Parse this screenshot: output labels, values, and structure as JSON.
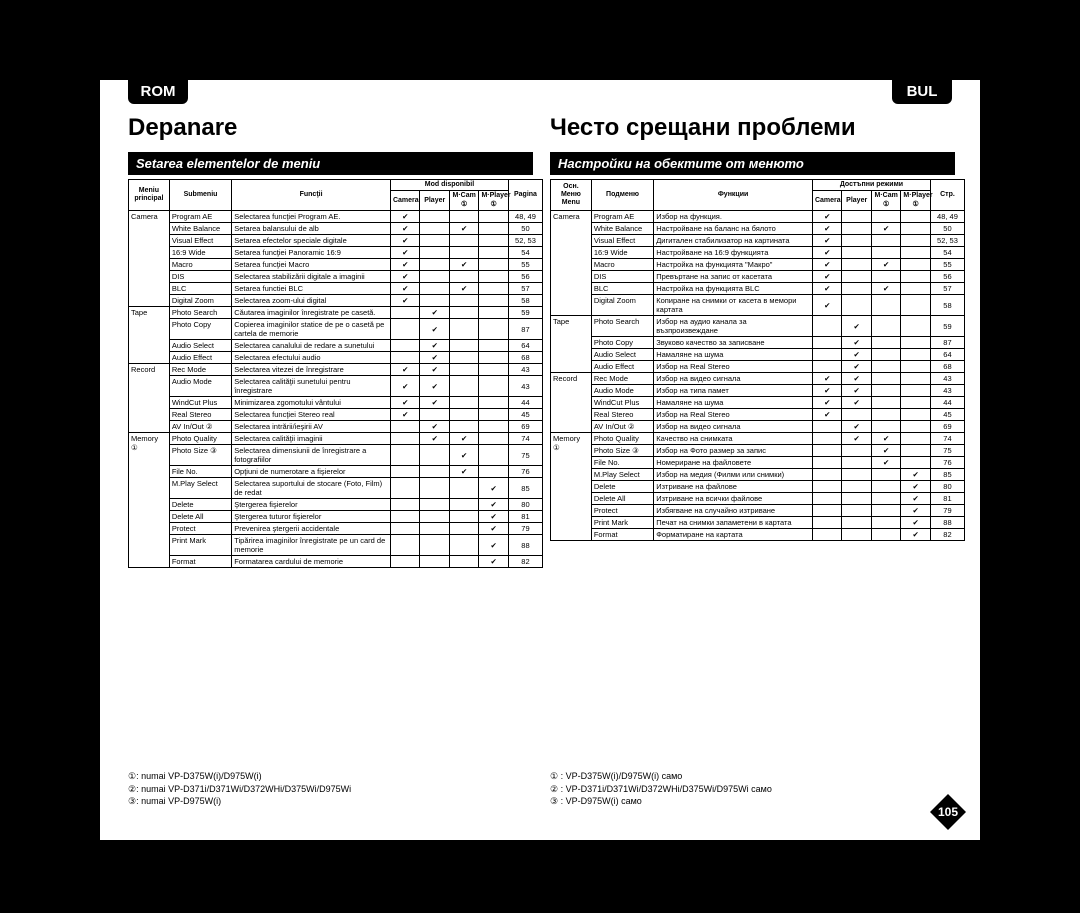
{
  "lang": {
    "left": "ROM",
    "right": "BUL"
  },
  "titles": {
    "left": "Depanare",
    "right": "Често срещани проблеми"
  },
  "sections": {
    "left": "Setarea elementelor de meniu",
    "right": "Настройки на обектите от менюто"
  },
  "colors": {
    "bg": "#000000",
    "paper": "#ffffff",
    "header": "#000000",
    "text": "#000000"
  },
  "page_number": "105",
  "headers_left": {
    "main": "Meniu principal",
    "sub": "Submeniu",
    "func": "Funcţii",
    "mode_group": "Mod disponibil",
    "modes": [
      "Camera",
      "Player",
      "M·Cam ①",
      "M·Player ①"
    ],
    "page": "Pagina"
  },
  "headers_right": {
    "main": "Осн. Меню Menu",
    "sub": "Подменю",
    "func": "Функции",
    "mode_group": "Достъпни режими",
    "modes": [
      "Camera",
      "Player",
      "M·Cam ①",
      "M·Player ①"
    ],
    "page": "Стр."
  },
  "check": "✔",
  "rows_left": [
    {
      "main": "Camera",
      "sub": "Program AE",
      "func": "Selectarea funcţiei Program AE.",
      "m": [
        1,
        0,
        0,
        0
      ],
      "p": "48, 49"
    },
    {
      "main": "",
      "sub": "White Balance",
      "func": "Setarea balansului de alb",
      "m": [
        1,
        0,
        1,
        0
      ],
      "p": "50"
    },
    {
      "main": "",
      "sub": "Visual Effect",
      "func": "Setarea efectelor speciale digitale",
      "m": [
        1,
        0,
        0,
        0
      ],
      "p": "52, 53"
    },
    {
      "main": "",
      "sub": "16:9 Wide",
      "func": "Setarea funcţiei Panoramic 16:9",
      "m": [
        1,
        0,
        0,
        0
      ],
      "p": "54"
    },
    {
      "main": "",
      "sub": "Macro",
      "func": "Setarea funcţiei Macro",
      "m": [
        1,
        0,
        1,
        0
      ],
      "p": "55"
    },
    {
      "main": "",
      "sub": "DIS",
      "func": "Selectarea stabilizării digitale a imaginii",
      "m": [
        1,
        0,
        0,
        0
      ],
      "p": "56"
    },
    {
      "main": "",
      "sub": "BLC",
      "func": "Setarea functiei BLC",
      "m": [
        1,
        0,
        1,
        0
      ],
      "p": "57"
    },
    {
      "main": "",
      "sub": "Digital Zoom",
      "func": "Selectarea zoom-ului digital",
      "m": [
        1,
        0,
        0,
        0
      ],
      "p": "58"
    },
    {
      "main": "Tape",
      "sub": "Photo Search",
      "func": "Căutarea imaginilor înregistrate pe casetă.",
      "m": [
        0,
        1,
        0,
        0
      ],
      "p": "59"
    },
    {
      "main": "",
      "sub": "Photo Copy",
      "func": "Copierea imaginilor statice de pe o casetă pe cartela de memorie",
      "m": [
        0,
        1,
        0,
        0
      ],
      "p": "87"
    },
    {
      "main": "",
      "sub": "Audio Select",
      "func": "Selectarea canalului de redare a sunetului",
      "m": [
        0,
        1,
        0,
        0
      ],
      "p": "64"
    },
    {
      "main": "",
      "sub": "Audio Effect",
      "func": "Selectarea efectului audio",
      "m": [
        0,
        1,
        0,
        0
      ],
      "p": "68"
    },
    {
      "main": "Record",
      "sub": "Rec Mode",
      "func": "Selectarea vitezei de înregistrare",
      "m": [
        1,
        1,
        0,
        0
      ],
      "p": "43"
    },
    {
      "main": "",
      "sub": "Audio Mode",
      "func": "Selectarea calităţii sunetului pentru înregistrare",
      "m": [
        1,
        1,
        0,
        0
      ],
      "p": "43"
    },
    {
      "main": "",
      "sub": "WindCut Plus",
      "func": "Minimizarea zgomotului vântului",
      "m": [
        1,
        1,
        0,
        0
      ],
      "p": "44"
    },
    {
      "main": "",
      "sub": "Real Stereo",
      "func": "Selectarea funcţiei Stereo real",
      "m": [
        1,
        0,
        0,
        0
      ],
      "p": "45"
    },
    {
      "main": "",
      "sub": "AV In/Out ②",
      "func": "Selectarea intrării/ieşirii AV",
      "m": [
        0,
        1,
        0,
        0
      ],
      "p": "69"
    },
    {
      "main": "Memory ①",
      "sub": "Photo Quality",
      "func": "Selectarea calităţii imaginii",
      "m": [
        0,
        1,
        1,
        0
      ],
      "p": "74"
    },
    {
      "main": "",
      "sub": "Photo Size ③",
      "func": "Selectarea dimensiunii de înregistrare a fotografiilor",
      "m": [
        0,
        0,
        1,
        0
      ],
      "p": "75"
    },
    {
      "main": "",
      "sub": "File No.",
      "func": "Opţiuni de numerotare a fişierelor",
      "m": [
        0,
        0,
        1,
        0
      ],
      "p": "76"
    },
    {
      "main": "",
      "sub": "M.Play Select",
      "func": "Selectarea suportului de stocare (Foto, Film) de redat",
      "m": [
        0,
        0,
        0,
        1
      ],
      "p": "85"
    },
    {
      "main": "",
      "sub": "Delete",
      "func": "Ştergerea fişierelor",
      "m": [
        0,
        0,
        0,
        1
      ],
      "p": "80"
    },
    {
      "main": "",
      "sub": "Delete All",
      "func": "Ştergerea tuturor fişierelor",
      "m": [
        0,
        0,
        0,
        1
      ],
      "p": "81"
    },
    {
      "main": "",
      "sub": "Protect",
      "func": "Prevenirea ştergerii accidentale",
      "m": [
        0,
        0,
        0,
        1
      ],
      "p": "79"
    },
    {
      "main": "",
      "sub": "Print Mark",
      "func": "Tipărirea imaginilor înregistrate pe un card de memorie",
      "m": [
        0,
        0,
        0,
        1
      ],
      "p": "88"
    },
    {
      "main": "",
      "sub": "Format",
      "func": "Formatarea cardului de memorie",
      "m": [
        0,
        0,
        0,
        1
      ],
      "p": "82"
    }
  ],
  "rows_right": [
    {
      "main": "Camera",
      "sub": "Program AE",
      "func": "Избор на функция.",
      "m": [
        1,
        0,
        0,
        0
      ],
      "p": "48, 49"
    },
    {
      "main": "",
      "sub": "White Balance",
      "func": "Настройване на баланс на бялото",
      "m": [
        1,
        0,
        1,
        0
      ],
      "p": "50"
    },
    {
      "main": "",
      "sub": "Visual Effect",
      "func": "Дигитален стабилизатор на картината",
      "m": [
        1,
        0,
        0,
        0
      ],
      "p": "52, 53"
    },
    {
      "main": "",
      "sub": "16:9 Wide",
      "func": "Настройване на 16:9 функцията",
      "m": [
        1,
        0,
        0,
        0
      ],
      "p": "54"
    },
    {
      "main": "",
      "sub": "Macro",
      "func": "Настройка на функцията \"Макро\"",
      "m": [
        1,
        0,
        1,
        0
      ],
      "p": "55"
    },
    {
      "main": "",
      "sub": "DIS",
      "func": "Превъртане на запис от касетата",
      "m": [
        1,
        0,
        0,
        0
      ],
      "p": "56"
    },
    {
      "main": "",
      "sub": "BLC",
      "func": "Настройка на функцията BLC",
      "m": [
        1,
        0,
        1,
        0
      ],
      "p": "57"
    },
    {
      "main": "",
      "sub": "Digital Zoom",
      "func": "Копиране на снимки от касета в мемори картата",
      "m": [
        1,
        0,
        0,
        0
      ],
      "p": "58"
    },
    {
      "main": "Tape",
      "sub": "Photo Search",
      "func": "Избор на аудио канала за възпроизвеждане",
      "m": [
        0,
        1,
        0,
        0
      ],
      "p": "59"
    },
    {
      "main": "",
      "sub": "Photo Copy",
      "func": "Звуково качество за записване",
      "m": [
        0,
        1,
        0,
        0
      ],
      "p": "87"
    },
    {
      "main": "",
      "sub": "Audio Select",
      "func": "Намаляне на шума",
      "m": [
        0,
        1,
        0,
        0
      ],
      "p": "64"
    },
    {
      "main": "",
      "sub": "Audio Effect",
      "func": "Избор на Real Stereo",
      "m": [
        0,
        1,
        0,
        0
      ],
      "p": "68"
    },
    {
      "main": "Record",
      "sub": "Rec Mode",
      "func": "Избор на видео сигнала",
      "m": [
        1,
        1,
        0,
        0
      ],
      "p": "43"
    },
    {
      "main": "",
      "sub": "Audio Mode",
      "func": "Избор на типа памет",
      "m": [
        1,
        1,
        0,
        0
      ],
      "p": "43"
    },
    {
      "main": "",
      "sub": "WindCut Plus",
      "func": "Намаляне на шума",
      "m": [
        1,
        1,
        0,
        0
      ],
      "p": "44"
    },
    {
      "main": "",
      "sub": "Real Stereo",
      "func": "Избор на Real Stereo",
      "m": [
        1,
        0,
        0,
        0
      ],
      "p": "45"
    },
    {
      "main": "",
      "sub": "AV In/Out ②",
      "func": "Избор на видео сигнала",
      "m": [
        0,
        1,
        0,
        0
      ],
      "p": "69"
    },
    {
      "main": "Memory ①",
      "sub": "Photo Quality",
      "func": "Качество на снимката",
      "m": [
        0,
        1,
        1,
        0
      ],
      "p": "74"
    },
    {
      "main": "",
      "sub": "Photo Size ③",
      "func": "Избор на Фото размер за запис",
      "m": [
        0,
        0,
        1,
        0
      ],
      "p": "75"
    },
    {
      "main": "",
      "sub": "File No.",
      "func": "Номериране на файловете",
      "m": [
        0,
        0,
        1,
        0
      ],
      "p": "76"
    },
    {
      "main": "",
      "sub": "M.Play Select",
      "func": "Избор на медия (Филми или снимки)",
      "m": [
        0,
        0,
        0,
        1
      ],
      "p": "85"
    },
    {
      "main": "",
      "sub": "Delete",
      "func": "Изтриване на файлове",
      "m": [
        0,
        0,
        0,
        1
      ],
      "p": "80"
    },
    {
      "main": "",
      "sub": "Delete All",
      "func": "Изтриване на всички файлове",
      "m": [
        0,
        0,
        0,
        1
      ],
      "p": "81"
    },
    {
      "main": "",
      "sub": "Protect",
      "func": "Избягване на случайно изтриване",
      "m": [
        0,
        0,
        0,
        1
      ],
      "p": "79"
    },
    {
      "main": "",
      "sub": "Print Mark",
      "func": "Печат на снимки запаметени в картата",
      "m": [
        0,
        0,
        0,
        1
      ],
      "p": "88"
    },
    {
      "main": "",
      "sub": "Format",
      "func": "Форматиране на картата",
      "m": [
        0,
        0,
        0,
        1
      ],
      "p": "82"
    }
  ],
  "footnotes_left": [
    "①: numai VP-D375W(i)/D975W(i)",
    "②: numai VP-D371i/D371Wi/D372WHi/D375Wi/D975Wi",
    "③: numai VP-D975W(i)"
  ],
  "footnotes_right": [
    "① : VP-D375W(i)/D975W(i) само",
    "② : VP-D371i/D371Wi/D372WHi/D375Wi/D975Wi само",
    "③ : VP-D975W(i) само"
  ]
}
